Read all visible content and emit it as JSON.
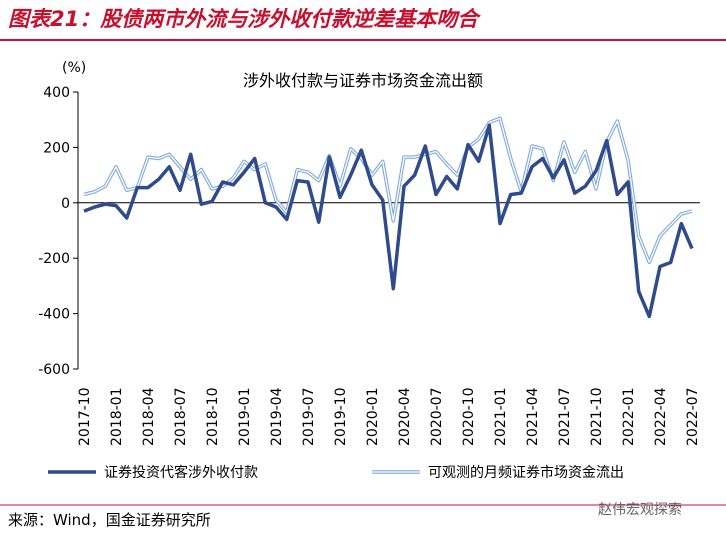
{
  "chart_data": {
    "type": "line",
    "header": "图表21：股债两市外流与涉外收付款逆差基本吻合",
    "title": "涉外收付款与证券市场资金流出额",
    "y_label": "(%)",
    "source": "来源：Wind，国金证券研究所",
    "watermark": "赵伟宏观探索",
    "categories": [
      "2017-10",
      null,
      null,
      "2018-01",
      null,
      null,
      "2018-04",
      null,
      null,
      "2018-07",
      null,
      null,
      "2018-10",
      null,
      null,
      "2019-01",
      null,
      null,
      "2019-04",
      null,
      null,
      "2019-07",
      null,
      null,
      "2019-10",
      null,
      null,
      "2020-01",
      null,
      null,
      "2020-04",
      null,
      null,
      "2020-07",
      null,
      null,
      "2020-10",
      null,
      null,
      "2021-01",
      null,
      null,
      "2021-04",
      null,
      null,
      "2021-07",
      null,
      null,
      "2021-10",
      null,
      null,
      "2022-01",
      null,
      null,
      "2022-04",
      null,
      null,
      "2022-07"
    ],
    "series": [
      {
        "name": "证券投资代客涉外收付款",
        "color": "#2f4b8c",
        "values": [
          -30,
          -15,
          -5,
          -10,
          -55,
          55,
          55,
          85,
          130,
          45,
          175,
          -5,
          5,
          75,
          65,
          110,
          160,
          0,
          -15,
          -60,
          80,
          75,
          -70,
          165,
          20,
          100,
          190,
          65,
          10,
          -310,
          60,
          100,
          205,
          30,
          95,
          50,
          210,
          150,
          280,
          -75,
          30,
          35,
          130,
          160,
          90,
          155,
          35,
          60,
          115,
          225,
          30,
          75,
          -320,
          -410,
          -230,
          -215,
          -75,
          -165
        ]
      },
      {
        "name": "可观测的月频证券市场资金流出",
        "color": "#7ea9de",
        "values": [
          30,
          40,
          60,
          130,
          45,
          55,
          165,
          160,
          175,
          130,
          85,
          120,
          50,
          60,
          90,
          150,
          120,
          140,
          10,
          -35,
          120,
          110,
          80,
          170,
          60,
          195,
          160,
          100,
          150,
          -65,
          165,
          165,
          175,
          185,
          140,
          100,
          200,
          230,
          290,
          305,
          160,
          40,
          205,
          195,
          80,
          220,
          110,
          185,
          50,
          220,
          295,
          155,
          -120,
          -215,
          -120,
          -80,
          -40,
          -30
        ]
      }
    ],
    "ylim": [
      -600,
      400
    ],
    "yticks": [
      -600,
      -400,
      -200,
      0,
      200,
      400
    ]
  }
}
